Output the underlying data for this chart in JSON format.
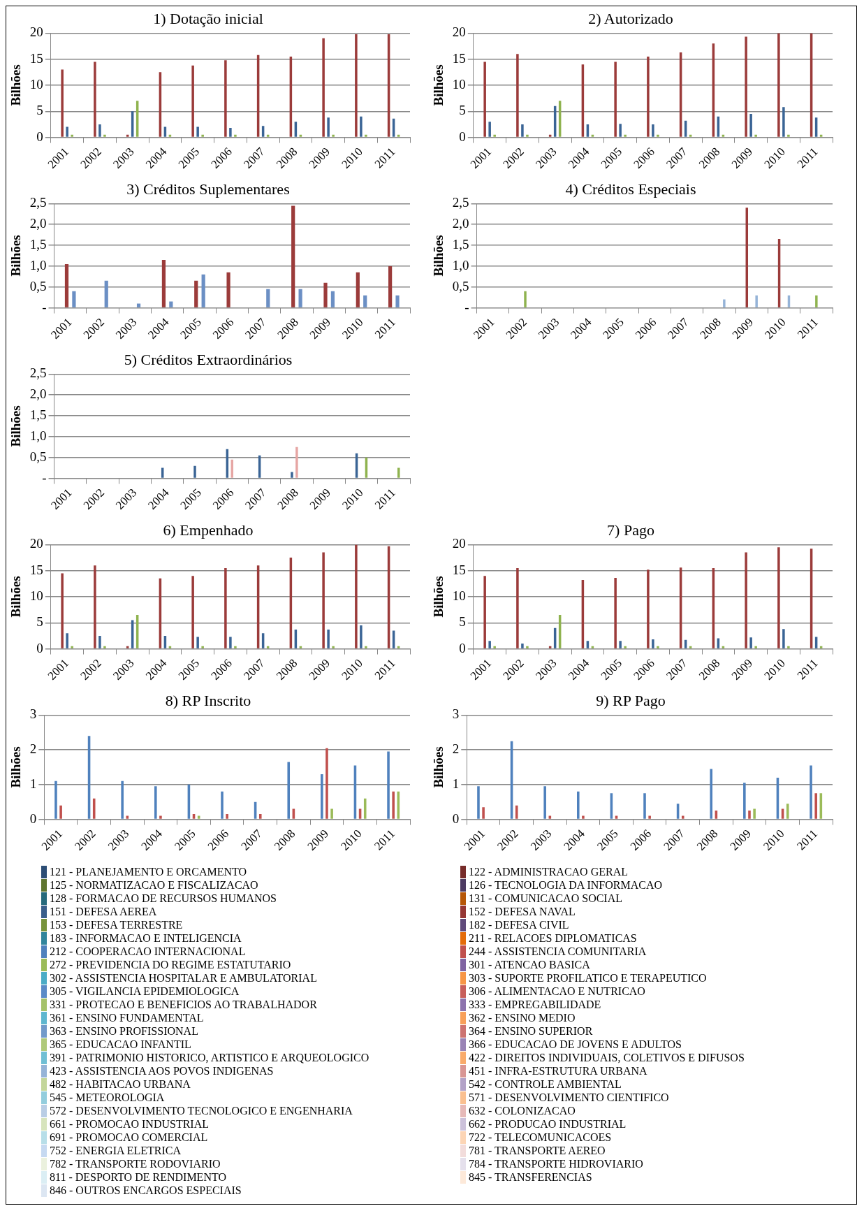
{
  "chart_data": [
    {
      "type": "bar",
      "title": "1) Dotação inicial",
      "ylabel": "Bilhões",
      "categories": [
        "2001",
        "2002",
        "2003",
        "2004",
        "2005",
        "2006",
        "2007",
        "2008",
        "2009",
        "2010",
        "2011"
      ],
      "ylim": [
        0,
        20
      ],
      "yticks": [
        0,
        5,
        10,
        15,
        20
      ],
      "grid": "y",
      "series": [
        {
          "color": "#9b3b3a",
          "values": [
            13,
            14.5,
            0.5,
            12.5,
            13.8,
            14.8,
            15.8,
            15.5,
            19,
            19.8,
            19.8
          ]
        },
        {
          "color": "#3a6495",
          "values": [
            2,
            2.5,
            5,
            2,
            2,
            1.8,
            2.2,
            3,
            3.8,
            4,
            3.6
          ]
        },
        {
          "color": "#8fb34f",
          "values": [
            0.5,
            0.5,
            7,
            0.5,
            0.5,
            0.5,
            0.5,
            0.5,
            0.5,
            0.5,
            0.5
          ]
        }
      ]
    },
    {
      "type": "bar",
      "title": "2) Autorizado",
      "ylabel": "Bilhões",
      "categories": [
        "2001",
        "2002",
        "2003",
        "2004",
        "2005",
        "2006",
        "2007",
        "2008",
        "2009",
        "2010",
        "2011"
      ],
      "ylim": [
        0,
        20
      ],
      "yticks": [
        0,
        5,
        10,
        15,
        20
      ],
      "grid": "y",
      "series": [
        {
          "color": "#9b3b3a",
          "values": [
            14.5,
            16,
            0.5,
            14,
            14.5,
            15.5,
            16.3,
            18,
            19.3,
            20,
            20
          ]
        },
        {
          "color": "#3a6495",
          "values": [
            3,
            2.5,
            6,
            2.5,
            2.6,
            2.5,
            3.2,
            4,
            4.5,
            5.8,
            3.8
          ]
        },
        {
          "color": "#8fb34f",
          "values": [
            0.5,
            0.5,
            7,
            0.5,
            0.5,
            0.5,
            0.5,
            0.5,
            0.5,
            0.5,
            0.5
          ]
        }
      ]
    },
    {
      "type": "bar",
      "title": "3) Créditos Suplementares",
      "ylabel": "Bilhões",
      "categories": [
        "2001",
        "2002",
        "2003",
        "2004",
        "2005",
        "2006",
        "2007",
        "2008",
        "2009",
        "2010",
        "2011"
      ],
      "ylim": [
        0,
        2.5
      ],
      "yticks": [
        {
          "value": 0,
          "label": "-"
        },
        {
          "value": 0.5,
          "label": "0,5"
        },
        {
          "value": 1,
          "label": "1,0"
        },
        {
          "value": 1.5,
          "label": "1,5"
        },
        {
          "value": 2,
          "label": "2,0"
        },
        {
          "value": 2.5,
          "label": "2,5"
        }
      ],
      "grid": "y",
      "series": [
        {
          "color": "#9b3b3a",
          "values": [
            1.05,
            0,
            0,
            1.15,
            0.65,
            0.85,
            0,
            2.45,
            0.6,
            0.85,
            1
          ]
        },
        {
          "color": "#6b8fc4",
          "values": [
            0.4,
            0.65,
            0.1,
            0.15,
            0.8,
            0,
            0.45,
            0.45,
            0.4,
            0.3,
            0.3
          ]
        }
      ]
    },
    {
      "type": "bar",
      "title": "4) Créditos Especiais",
      "ylabel": "Bilhões",
      "categories": [
        "2001",
        "2002",
        "2003",
        "2004",
        "2005",
        "2006",
        "2007",
        "2008",
        "2009",
        "2010",
        "2011"
      ],
      "ylim": [
        0,
        2.5
      ],
      "yticks": [
        {
          "value": 0,
          "label": "-"
        },
        {
          "value": 0.5,
          "label": "0,5"
        },
        {
          "value": 1,
          "label": "1,0"
        },
        {
          "value": 1.5,
          "label": "1,5"
        },
        {
          "value": 2,
          "label": "2,0"
        },
        {
          "value": 2.5,
          "label": "2,5"
        }
      ],
      "grid": "y",
      "series": [
        {
          "color": "#9b3b3a",
          "values": [
            0,
            0,
            0,
            0,
            0,
            0,
            0,
            0,
            2.4,
            1.65,
            0
          ]
        },
        {
          "color": "#8fb34f",
          "values": [
            0,
            0.4,
            0,
            0,
            0,
            0,
            0,
            0,
            0,
            0,
            0.3
          ]
        },
        {
          "color": "#95b3d7",
          "values": [
            0,
            0,
            0,
            0,
            0,
            0,
            0,
            0.2,
            0.3,
            0.3,
            0
          ]
        }
      ]
    },
    {
      "type": "bar",
      "title": "5) Créditos Extraordinários",
      "ylabel": "Bilhões",
      "categories": [
        "2001",
        "2002",
        "2003",
        "2004",
        "2005",
        "2006",
        "2007",
        "2008",
        "2009",
        "2010",
        "2011"
      ],
      "ylim": [
        0,
        2.5
      ],
      "yticks": [
        {
          "value": 0,
          "label": "-"
        },
        {
          "value": 0.5,
          "label": "0,5"
        },
        {
          "value": 1,
          "label": "1,0"
        },
        {
          "value": 1.5,
          "label": "1,5"
        },
        {
          "value": 2,
          "label": "2,0"
        },
        {
          "value": 2.5,
          "label": "2,5"
        }
      ],
      "grid": "y",
      "series": [
        {
          "color": "#3a6495",
          "values": [
            0,
            0,
            0,
            0.25,
            0.3,
            0.7,
            0.55,
            0.15,
            0,
            0.6,
            0
          ]
        },
        {
          "color": "#e6a6a4",
          "values": [
            0,
            0,
            0,
            0,
            0,
            0.45,
            0,
            0.75,
            0,
            0,
            0
          ]
        },
        {
          "color": "#8fb34f",
          "values": [
            0,
            0,
            0,
            0,
            0,
            0,
            0,
            0,
            0,
            0.5,
            0.25
          ]
        }
      ]
    },
    {
      "type": "bar",
      "title": "6) Empenhado",
      "ylabel": "Bilhões",
      "categories": [
        "2001",
        "2002",
        "2003",
        "2004",
        "2005",
        "2006",
        "2007",
        "2008",
        "2009",
        "2010",
        "2011"
      ],
      "ylim": [
        0,
        20
      ],
      "yticks": [
        0,
        5,
        10,
        15,
        20
      ],
      "grid": "y",
      "series": [
        {
          "color": "#9b3b3a",
          "values": [
            14.5,
            16,
            0.5,
            13.5,
            14,
            15.5,
            16,
            17.5,
            18.5,
            20,
            19.7
          ]
        },
        {
          "color": "#3a6495",
          "values": [
            3,
            2.5,
            5.5,
            2.5,
            2.3,
            2.3,
            3,
            3.7,
            3.7,
            4.5,
            3.5
          ]
        },
        {
          "color": "#8fb34f",
          "values": [
            0.5,
            0.5,
            6.5,
            0.5,
            0.5,
            0.5,
            0.5,
            0.5,
            0.5,
            0.5,
            0.5
          ]
        }
      ]
    },
    {
      "type": "bar",
      "title": "7) Pago",
      "ylabel": "Bilhões",
      "categories": [
        "2001",
        "2002",
        "2003",
        "2004",
        "2005",
        "2006",
        "2007",
        "2008",
        "2009",
        "2010",
        "2011"
      ],
      "ylim": [
        0,
        20
      ],
      "yticks": [
        0,
        5,
        10,
        15,
        20
      ],
      "grid": "y",
      "series": [
        {
          "color": "#9b3b3a",
          "values": [
            14,
            15.5,
            0.5,
            13.2,
            13.6,
            15.2,
            15.6,
            15.5,
            18.5,
            19.5,
            19.2
          ]
        },
        {
          "color": "#3a6495",
          "values": [
            1.5,
            1,
            4,
            1.5,
            1.5,
            1.8,
            1.7,
            2,
            2.2,
            3.8,
            2.3
          ]
        },
        {
          "color": "#8fb34f",
          "values": [
            0.5,
            0.5,
            6.5,
            0.5,
            0.5,
            0.5,
            0.5,
            0.5,
            0.5,
            0.5,
            0.5
          ]
        }
      ]
    },
    {
      "type": "bar",
      "title": "8) RP Inscrito",
      "ylabel": "Bilhões",
      "categories": [
        "2001",
        "2002",
        "2003",
        "2004",
        "2005",
        "2006",
        "2007",
        "2008",
        "2009",
        "2010",
        "2011"
      ],
      "ylim": [
        0,
        3
      ],
      "yticks": [
        0,
        1,
        2,
        3
      ],
      "grid": "y",
      "series": [
        {
          "color": "#4f81bd",
          "values": [
            1.1,
            2.4,
            1.1,
            0.95,
            1,
            0.8,
            0.5,
            1.65,
            1.3,
            1.55,
            1.95
          ]
        },
        {
          "color": "#c0504d",
          "values": [
            0.4,
            0.6,
            0.1,
            0.1,
            0.15,
            0.15,
            0.15,
            0.3,
            2.05,
            0.3,
            0.8
          ]
        },
        {
          "color": "#9bbb59",
          "values": [
            0,
            0,
            0,
            0,
            0.1,
            0,
            0,
            0,
            0.3,
            0.6,
            0.8
          ]
        }
      ]
    },
    {
      "type": "bar",
      "title": "9) RP Pago",
      "ylabel": "Bilhões",
      "categories": [
        "2001",
        "2002",
        "2003",
        "2004",
        "2005",
        "2006",
        "2007",
        "2008",
        "2009",
        "2010",
        "2011"
      ],
      "ylim": [
        0,
        3
      ],
      "yticks": [
        0,
        1,
        2,
        3
      ],
      "grid": "y",
      "series": [
        {
          "color": "#4f81bd",
          "values": [
            0.95,
            2.25,
            0.95,
            0.8,
            0.75,
            0.75,
            0.45,
            1.45,
            1.05,
            1.2,
            1.55
          ]
        },
        {
          "color": "#c0504d",
          "values": [
            0.35,
            0.4,
            0.1,
            0.1,
            0.1,
            0.1,
            0.1,
            0.25,
            0.25,
            0.3,
            0.75
          ]
        },
        {
          "color": "#9bbb59",
          "values": [
            0,
            0,
            0,
            0,
            0,
            0,
            0,
            0,
            0.3,
            0.45,
            0.75
          ]
        }
      ]
    },
    {
      "type": "other",
      "annotations": [
        "121 - PLANEJAMENTO E ORCAMENTO",
        "122 - ADMINISTRACAO GERAL",
        "125 - NORMATIZACAO E FISCALIZACAO",
        "126 - TECNOLOGIA DA INFORMACAO",
        "128 - FORMACAO DE RECURSOS HUMANOS",
        "131 - COMUNICACAO SOCIAL",
        "151 - DEFESA AEREA",
        "152 - DEFESA NAVAL",
        "153 - DEFESA TERRESTRE",
        "182 - DEFESA CIVIL",
        "183 - INFORMACAO E INTELIGENCIA",
        "211 - RELACOES DIPLOMATICAS",
        "212 - COOPERACAO INTERNACIONAL",
        "244 - ASSISTENCIA COMUNITARIA",
        "272 - PREVIDENCIA DO REGIME ESTATUTARIO",
        "301 - ATENCAO BASICA",
        "302 - ASSISTENCIA HOSPITALAR E AMBULATORIAL",
        "303 - SUPORTE PROFILATICO E TERAPEUTICO",
        "305 - VIGILANCIA EPIDEMIOLOGICA",
        "306 - ALIMENTACAO E NUTRICAO",
        "331 - PROTECAO E BENEFICIOS AO TRABALHADOR",
        "333 - EMPREGABILIDADE",
        "361 - ENSINO FUNDAMENTAL",
        "362 - ENSINO MEDIO",
        "363 - ENSINO PROFISSIONAL",
        "364 - ENSINO SUPERIOR",
        "365 - EDUCACAO INFANTIL",
        "366 - EDUCACAO DE JOVENS E ADULTOS",
        "391 - PATRIMONIO HISTORICO, ARTISTICO E ARQUEOLOGICO",
        "422 - DIREITOS INDIVIDUAIS, COLETIVOS E DIFUSOS",
        "423 - ASSISTENCIA AOS POVOS INDIGENAS",
        "451 - INFRA-ESTRUTURA URBANA",
        "482 - HABITACAO URBANA",
        "542 - CONTROLE AMBIENTAL",
        "545 - METEOROLOGIA",
        "571 - DESENVOLVIMENTO CIENTIFICO",
        "572 - DESENVOLVIMENTO TECNOLOGICO E ENGENHARIA",
        "632 - COLONIZACAO",
        "661 - PROMOCAO INDUSTRIAL",
        "662 - PRODUCAO INDUSTRIAL",
        "691 - PROMOCAO COMERCIAL",
        "722 - TELECOMUNICACOES",
        "752 - ENERGIA ELETRICA",
        "781 - TRANSPORTE AEREO",
        "782 - TRANSPORTE RODOVIARIO",
        "784 - TRANSPORTE HIDROVIARIO",
        "811 - DESPORTO DE RENDIMENTO",
        "845 - TRANSFERENCIAS",
        "846 - OUTROS ENCARGOS ESPECIAIS"
      ],
      "colors": [
        "#2c4d75",
        "#772c2a",
        "#5f7530",
        "#4d3b62",
        "#276a7c",
        "#b65708",
        "#3a5f8b",
        "#953735",
        "#77933c",
        "#604a7b",
        "#31859c",
        "#e46c0a",
        "#4f81bd",
        "#c0504d",
        "#9bbb59",
        "#8064a2",
        "#4bacc6",
        "#f79646",
        "#5b8bc7",
        "#c75e5b",
        "#a5c26a",
        "#8d73ad",
        "#5fb7cf",
        "#f8a05a",
        "#729aca",
        "#cd7371",
        "#afc97a",
        "#9983b5",
        "#70bfd4",
        "#f9ab6b",
        "#95b3d7",
        "#d99694",
        "#c3d69b",
        "#b3a2c7",
        "#93cddd",
        "#fac090",
        "#b9cde5",
        "#e6b9b8",
        "#d7e4bd",
        "#ccc1da",
        "#b7dee8",
        "#fcd5b5",
        "#c6d9f1",
        "#f2dcdb",
        "#ebf1de",
        "#e5e0ec",
        "#dbeef4",
        "#fde9d9",
        "#dce6f2"
      ]
    }
  ]
}
